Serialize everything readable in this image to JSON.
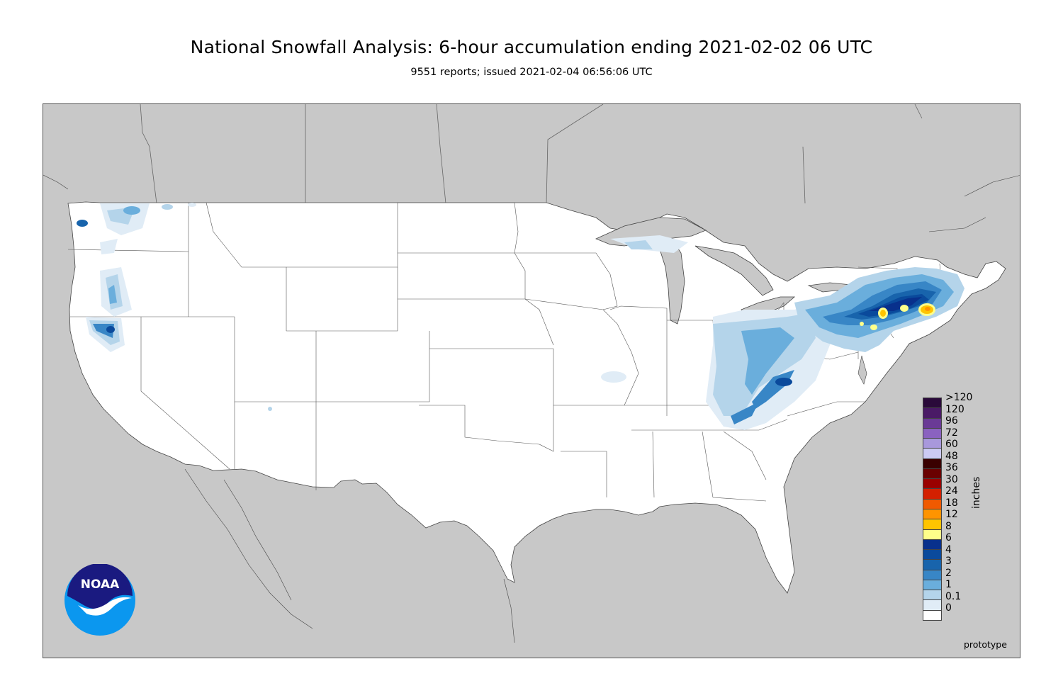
{
  "header": {
    "title": "National Snowfall Analysis: 6-hour accumulation ending 2021-02-02 06 UTC",
    "subtitle": "9551 reports; issued 2021-02-04 06:56:06 UTC"
  },
  "legend": {
    "units": "inches",
    "levels": [
      {
        "label": ">120",
        "color": "#2a0a3a"
      },
      {
        "label": "120",
        "color": "#4a1a66"
      },
      {
        "label": "96",
        "color": "#6a3a96"
      },
      {
        "label": "72",
        "color": "#8a62c0"
      },
      {
        "label": "60",
        "color": "#a898dc"
      },
      {
        "label": "48",
        "color": "#cccaf4"
      },
      {
        "label": "36",
        "color": "#3a0000"
      },
      {
        "label": "30",
        "color": "#6a0000"
      },
      {
        "label": "24",
        "color": "#9a0000"
      },
      {
        "label": "18",
        "color": "#d42000"
      },
      {
        "label": "12",
        "color": "#f05a00"
      },
      {
        "label": "8",
        "color": "#ff9400"
      },
      {
        "label": "6",
        "color": "#ffc400"
      },
      {
        "label": "4",
        "color": "#ffff8a"
      },
      {
        "label": "3",
        "color": "#08308c"
      },
      {
        "label": "2",
        "color": "#0a4a9c"
      },
      {
        "label": "1",
        "color": "#1864ac"
      },
      {
        "label": "0.1",
        "color": "#3886c6"
      },
      {
        "label": "0",
        "color": "#6aaedc"
      }
    ],
    "low_colors": [
      "#b4d4ea",
      "#e0ecf6",
      "#ffffff"
    ]
  },
  "footer": {
    "note": "prototype"
  },
  "logo": {
    "text": "NOAA"
  }
}
